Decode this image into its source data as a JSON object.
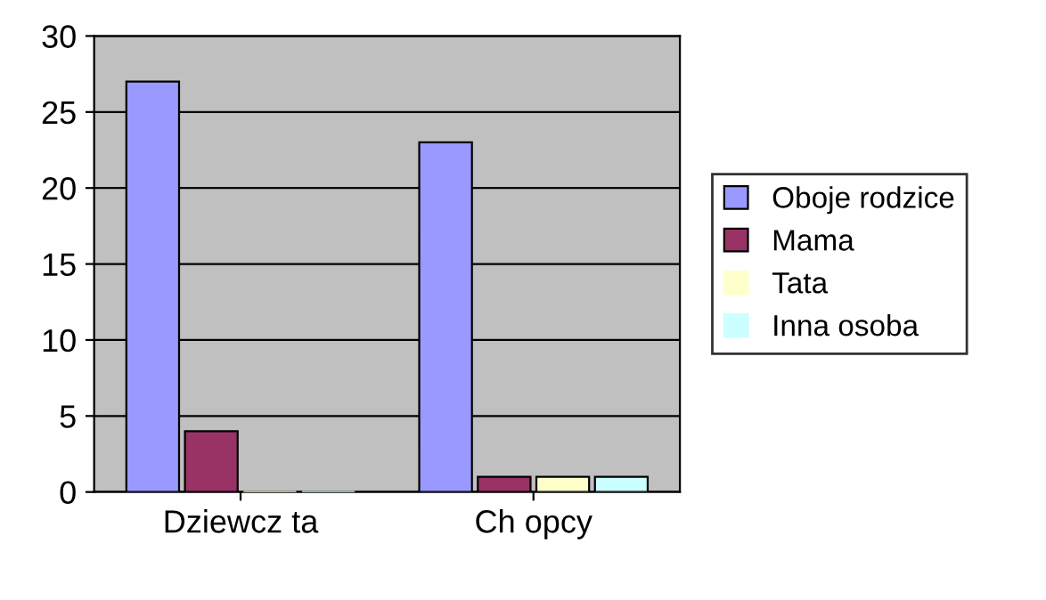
{
  "chart_data": {
    "type": "bar",
    "categories": [
      "Dziewcz ta",
      "Ch opcy"
    ],
    "series": [
      {
        "name": "Oboje rodzice",
        "color": "#9999ff",
        "values": [
          27,
          23
        ]
      },
      {
        "name": "Mama",
        "color": "#993366",
        "values": [
          4,
          1
        ]
      },
      {
        "name": "Tata",
        "color": "#ffffcc",
        "values": [
          0,
          1
        ]
      },
      {
        "name": "Inna osoba",
        "color": "#ccffff",
        "values": [
          0,
          1
        ]
      }
    ],
    "ylim": [
      0,
      30
    ],
    "yticks": [
      0,
      5,
      10,
      15,
      20,
      25,
      30
    ],
    "grid": "y",
    "legend": "right"
  }
}
